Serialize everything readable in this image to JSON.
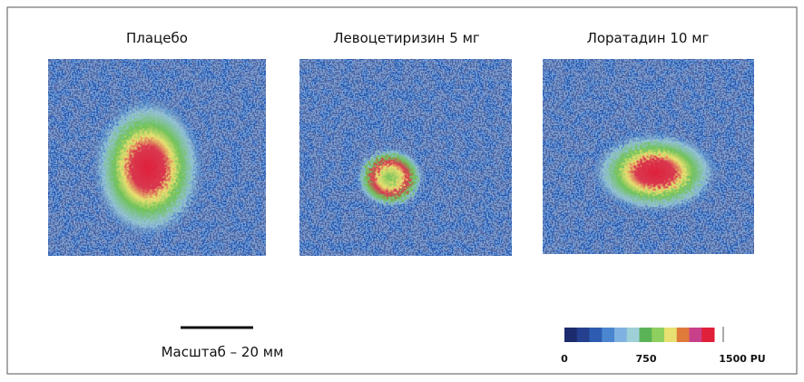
{
  "panels": [
    {
      "title": "Плацебо"
    },
    {
      "title": "Левоцетиризин 5 мг"
    },
    {
      "title": "Лоратадин 10 мг"
    }
  ],
  "scale_bar": {
    "label": "Масштаб – 20 мм"
  },
  "colorbar": {
    "labels": [
      "0",
      "750",
      "1500 PU"
    ],
    "colors": [
      "#1c2a6e",
      "#24408f",
      "#2d5cb0",
      "#4a86cf",
      "#7fb2e0",
      "#9fd0d8",
      "#5ab457",
      "#8fcf5f",
      "#e8e070",
      "#e07a3a",
      "#c8408a",
      "#e0203a"
    ]
  }
}
